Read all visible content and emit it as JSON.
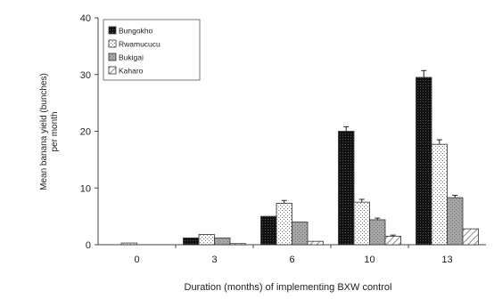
{
  "chart_data": {
    "type": "bar",
    "title": "",
    "xlabel": "Duration (months) of implementing BXW control",
    "ylabel_lines": [
      "Mean banana yield (bunches)",
      "per month"
    ],
    "ylim": [
      0,
      40
    ],
    "yticks": [
      "0",
      "10",
      "20",
      "30",
      "40"
    ],
    "grid": false,
    "legend_position": "top-left",
    "categories": [
      "0",
      "3",
      "6",
      "10",
      "13"
    ],
    "series": [
      {
        "name": "Bungokho",
        "values": [
          0,
          1.2,
          5.0,
          20.0,
          29.5
        ],
        "errors": [
          0,
          0,
          0,
          0.8,
          1.2
        ],
        "pattern": "dark",
        "color": "#1a1a1a"
      },
      {
        "name": "Rwamucucu",
        "values": [
          0.3,
          1.8,
          7.3,
          7.5,
          17.7
        ],
        "errors": [
          0,
          0,
          0.5,
          0.5,
          0.8
        ],
        "pattern": "dots",
        "color": "#ffffff"
      },
      {
        "name": "Bukigai",
        "values": [
          0,
          1.2,
          4.0,
          4.4,
          8.3
        ],
        "errors": [
          0,
          0,
          0,
          0.3,
          0.4
        ],
        "pattern": "gray",
        "color": "#9a9a9a"
      },
      {
        "name": "Kaharo",
        "values": [
          0,
          0.2,
          0.6,
          1.5,
          2.8
        ],
        "errors": [
          0,
          0,
          0,
          0.2,
          0
        ],
        "pattern": "hatch",
        "color": "#ffffff"
      }
    ]
  }
}
